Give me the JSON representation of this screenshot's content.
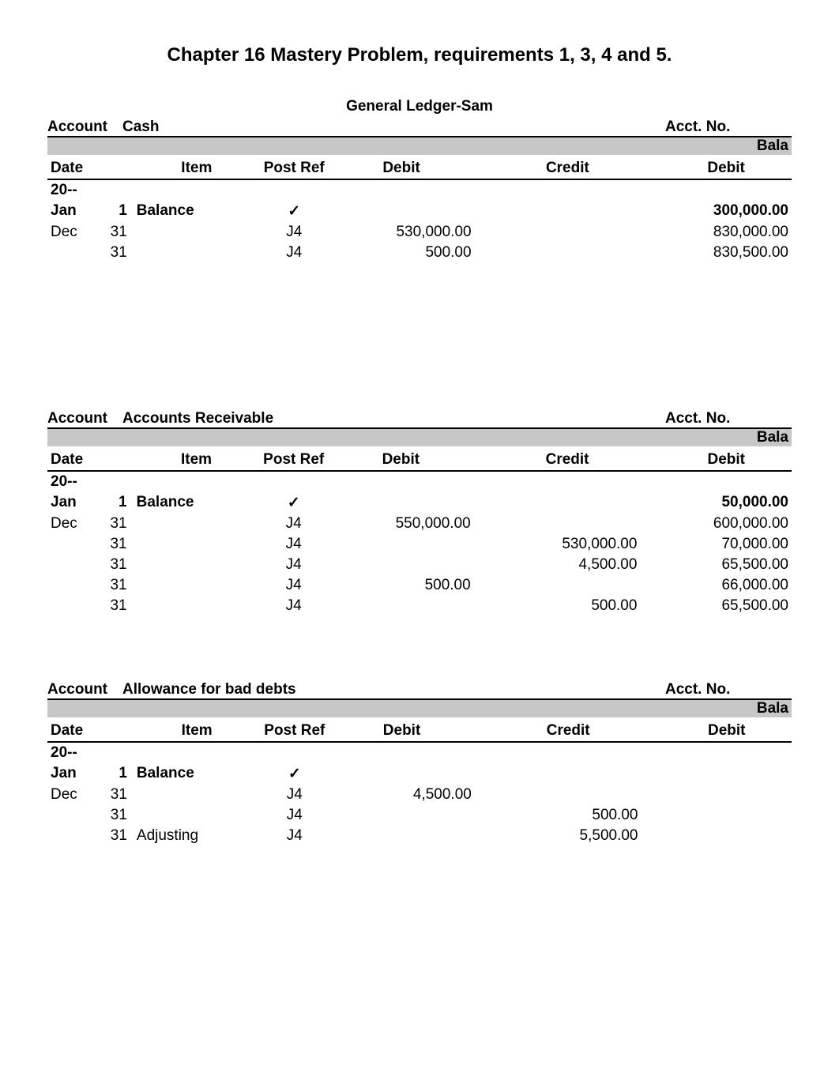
{
  "page_title": "Chapter 16 Mastery Problem, requirements 1, 3, 4 and 5.",
  "ledger_title": "General Ledger-Sam",
  "labels": {
    "account": "Account",
    "acct_no": "Acct. No.",
    "balance_trunc": "Bala",
    "date": "Date",
    "item": "Item",
    "post_ref": "Post Ref",
    "debit": "Debit",
    "credit": "Credit"
  },
  "ledgers": [
    {
      "name": "Cash",
      "year": "20--",
      "rows": [
        {
          "month": "Jan",
          "day": "1",
          "item": "Balance",
          "ref": "✓",
          "debit": "",
          "credit": "",
          "bal_debit": "300,000.00",
          "bold": true
        },
        {
          "month": "Dec",
          "day": "31",
          "item": "",
          "ref": "J4",
          "debit": "530,000.00",
          "credit": "",
          "bal_debit": "830,000.00",
          "bold": false
        },
        {
          "month": "",
          "day": "31",
          "item": "",
          "ref": "J4",
          "debit": "500.00",
          "credit": "",
          "bal_debit": "830,500.00",
          "bold": false
        }
      ],
      "blank_rows": 6
    },
    {
      "name": "Accounts Receivable",
      "year": "20--",
      "rows": [
        {
          "month": "Jan",
          "day": "1",
          "item": "Balance",
          "ref": "✓",
          "debit": "",
          "credit": "",
          "bal_debit": "50,000.00",
          "bold": true
        },
        {
          "month": "Dec",
          "day": "31",
          "item": "",
          "ref": "J4",
          "debit": "550,000.00",
          "credit": "",
          "bal_debit": "600,000.00",
          "bold": false
        },
        {
          "month": "",
          "day": "31",
          "item": "",
          "ref": "J4",
          "debit": "",
          "credit": "530,000.00",
          "bal_debit": "70,000.00",
          "bold": false
        },
        {
          "month": "",
          "day": "31",
          "item": "",
          "ref": "J4",
          "debit": "",
          "credit": "4,500.00",
          "bal_debit": "65,500.00",
          "bold": false
        },
        {
          "month": "",
          "day": "31",
          "item": "",
          "ref": "J4",
          "debit": "500.00",
          "credit": "",
          "bal_debit": "66,000.00",
          "bold": false
        },
        {
          "month": "",
          "day": "31",
          "item": "",
          "ref": "J4",
          "debit": "",
          "credit": "500.00",
          "bal_debit": "65,500.00",
          "bold": false
        }
      ],
      "blank_rows": 2
    },
    {
      "name": "Allowance for bad debts",
      "year": "20--",
      "rows": [
        {
          "month": "Jan",
          "day": "1",
          "item": "Balance",
          "ref": "✓",
          "debit": "",
          "credit": "",
          "bal_debit": "",
          "bold": true
        },
        {
          "month": "Dec",
          "day": "31",
          "item": "",
          "ref": "J4",
          "debit": "4,500.00",
          "credit": "",
          "bal_debit": "",
          "bold": false
        },
        {
          "month": "",
          "day": "31",
          "item": "",
          "ref": "J4",
          "debit": "",
          "credit": "500.00",
          "bal_debit": "",
          "bold": false
        },
        {
          "month": "",
          "day": "31",
          "item": "Adjusting",
          "ref": "J4",
          "debit": "",
          "credit": "5,500.00",
          "bal_debit": "",
          "bold": false
        }
      ],
      "blank_rows": 0
    }
  ]
}
